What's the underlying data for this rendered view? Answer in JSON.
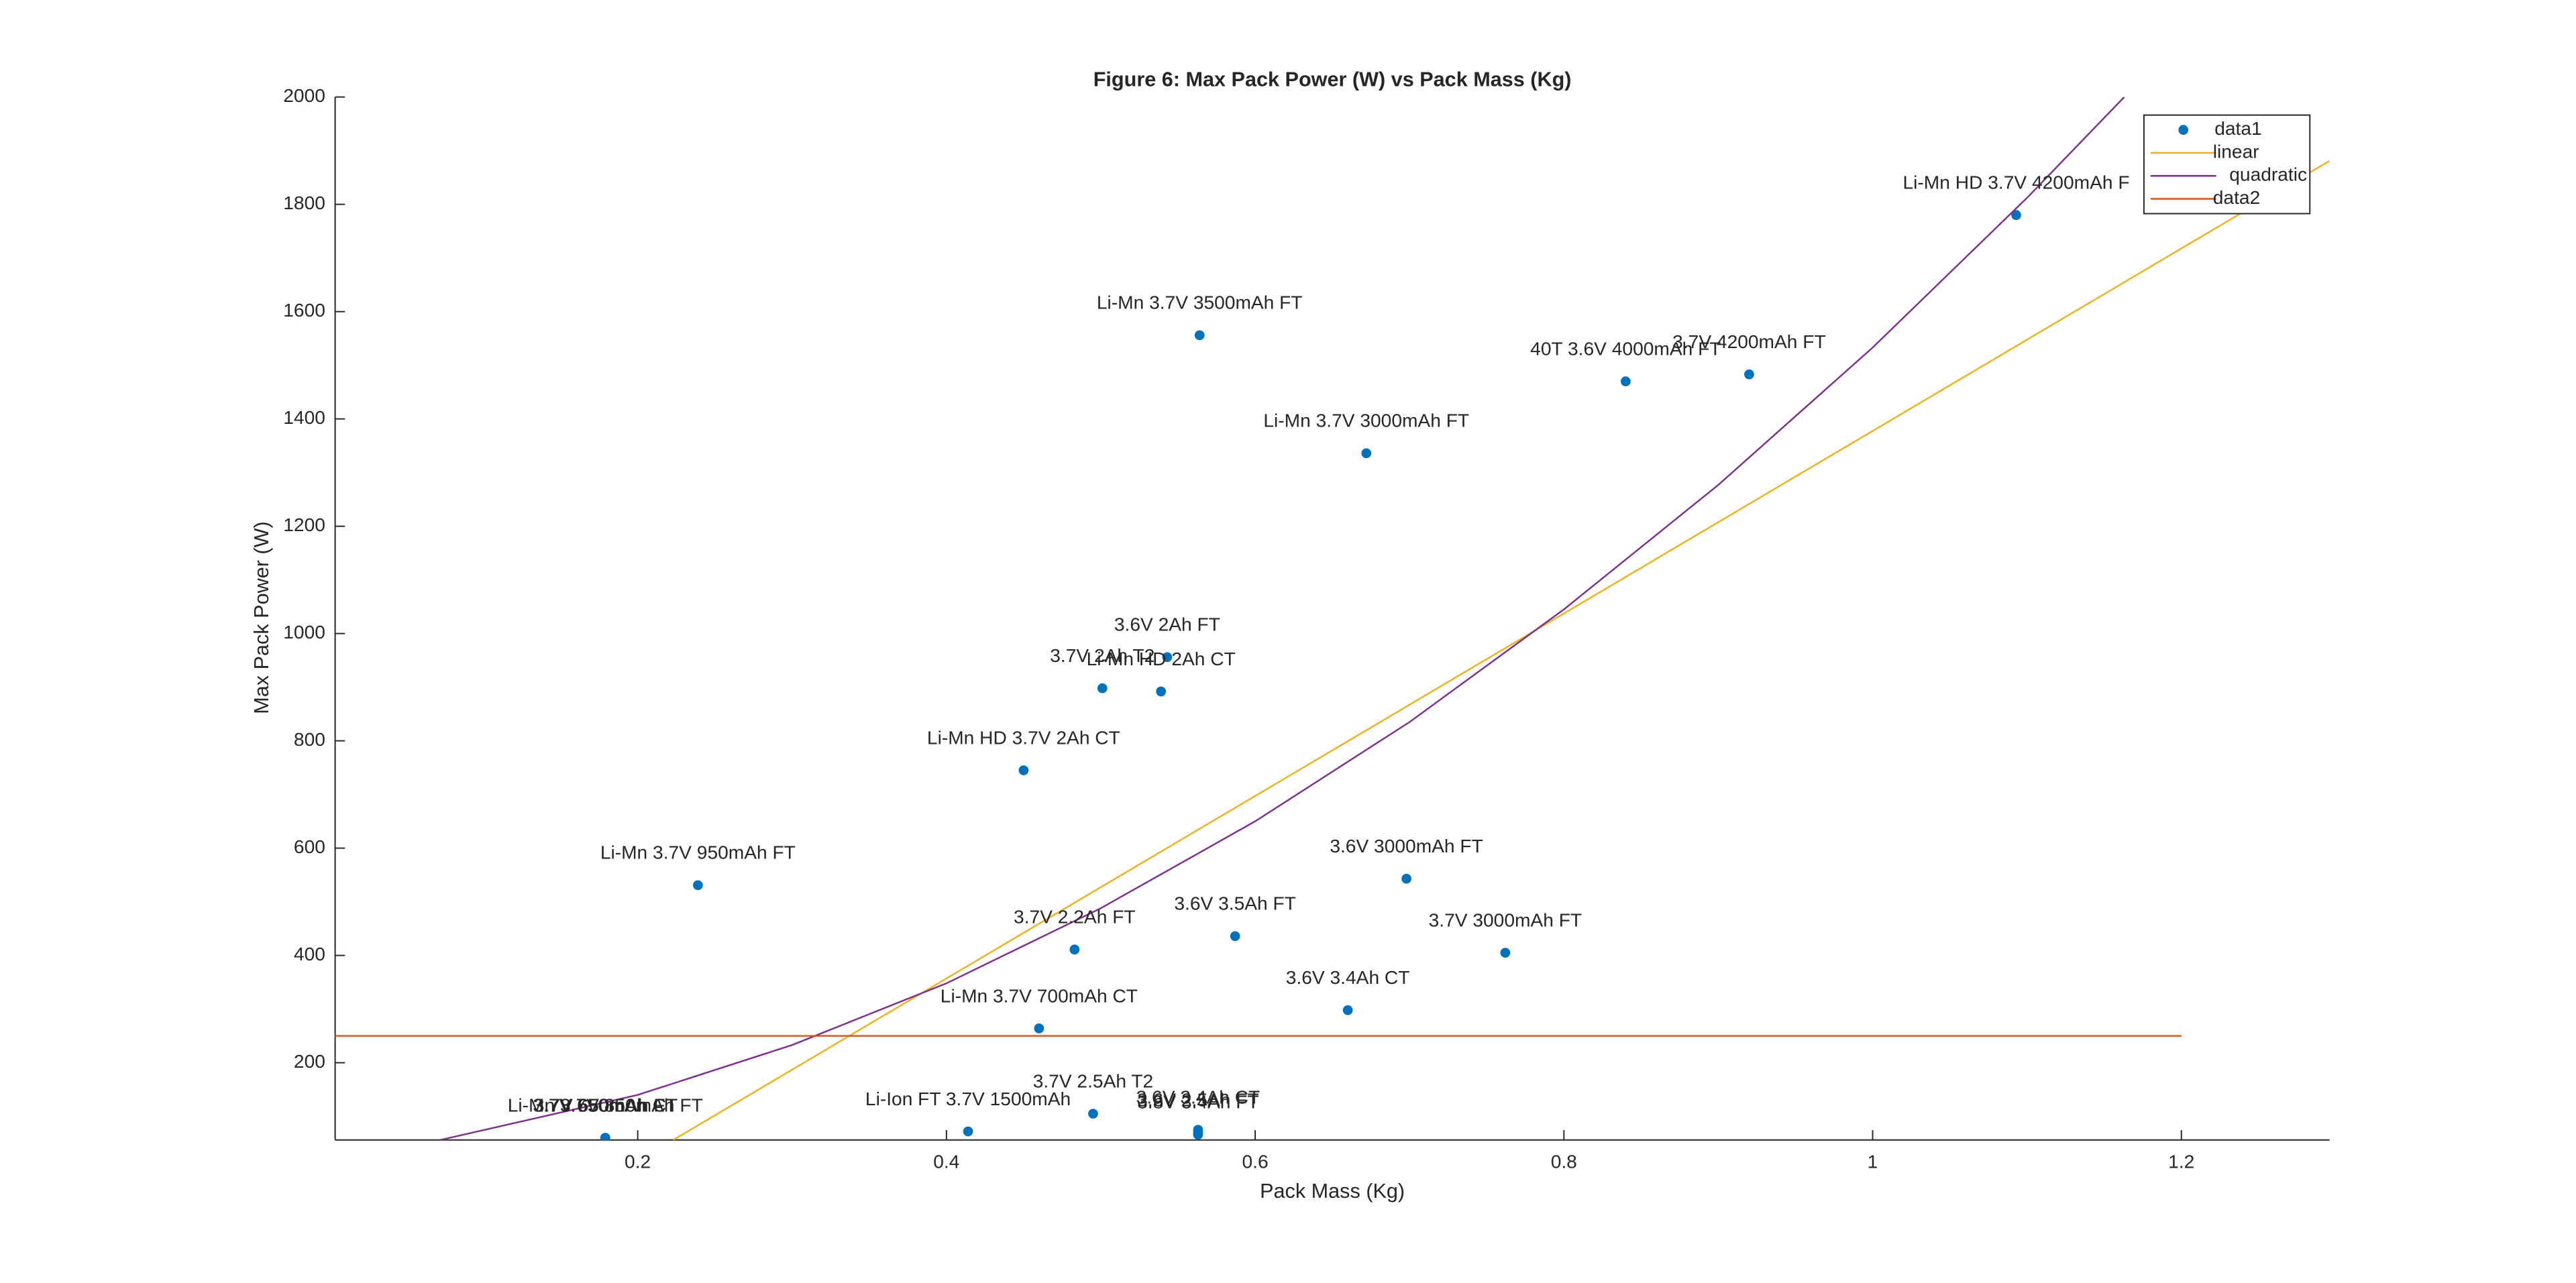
{
  "chart_data": {
    "type": "scatter",
    "title": "Figure 6: Max Pack Power (W) vs Pack Mass (Kg)",
    "x_label": "Pack Mass (Kg)",
    "y_label": "Max Pack Power (W)",
    "xlim": [
      0.004,
      1.296
    ],
    "ylim": [
      56,
      2000
    ],
    "xticks": [
      0.2,
      0.4,
      0.6,
      0.8,
      1,
      1.2
    ],
    "yticks": [
      200,
      400,
      600,
      800,
      1000,
      1200,
      1400,
      1600,
      1800,
      2000
    ],
    "legend": "northeast",
    "series": [
      {
        "name": "data1",
        "kind": "scatter",
        "color": "#0072bd",
        "x": [
          1.093,
          0.92,
          0.84,
          0.564,
          0.672,
          0.501,
          0.539,
          0.543,
          0.45,
          0.239,
          0.698,
          0.587,
          0.762,
          0.483,
          0.66,
          0.46,
          0.495,
          0.563,
          0.563,
          0.563,
          0.414,
          0.179,
          0.179,
          0.179
        ],
        "values": [
          1780,
          1483,
          1470,
          1556,
          1336,
          898,
          892,
          956,
          745,
          531,
          543,
          436,
          405,
          411,
          298,
          264,
          105,
          75,
          70,
          66,
          72,
          60,
          60,
          60
        ],
        "labels": [
          "Li-Mn HD 3.7V 4200mAh F",
          "3.7V 4200mAh FT",
          "40T 3.6V 4000mAh FT",
          "Li-Mn 3.7V 3500mAh FT",
          "Li-Mn 3.7V 3000mAh FT",
          "3.7V 2Ah T2",
          "Li-Mn HD 2Ah CT",
          "3.6V 2Ah FT",
          "Li-Mn HD 3.7V 2Ah CT",
          "Li-Mn 3.7V 950mAh FT",
          "3.6V 3000mAh FT",
          "3.6V 3.5Ah FT",
          "3.7V 3000mAh FT",
          "3.7V 2.2Ah FT",
          "3.6V 3.4Ah CT",
          "Li-Mn 3.7V 700mAh CT",
          "3.7V 2.5Ah T2",
          "3.6V 3.4Ah CT",
          "3.6V 2.5Ah FT",
          "3.8V 3.4Ah FT",
          "Li-Ion FT 3.7V 1500mAh",
          "Li-Mn 3.7V 850mAh FT",
          "3.7V 650mAh FT",
          "3.7V 650mAh CT"
        ]
      },
      {
        "name": "linear",
        "kind": "line",
        "color": "#edb120",
        "x": [
          0.223,
          1.296
        ],
        "values": [
          56,
          1881
        ]
      },
      {
        "name": "quadratic",
        "kind": "line",
        "color": "#7e2f8e",
        "x": [
          0.072,
          0.2,
          0.3,
          0.4,
          0.5,
          0.6,
          0.7,
          0.8,
          0.9,
          1.0,
          1.1,
          1.163
        ],
        "values": [
          56,
          140,
          233,
          348,
          488,
          650,
          835,
          1045,
          1277,
          1533,
          1812,
          2000
        ]
      },
      {
        "name": "data2",
        "kind": "line",
        "color": "#d95319",
        "x": [
          0.004,
          1.2
        ],
        "values": [
          250,
          250
        ]
      }
    ]
  }
}
